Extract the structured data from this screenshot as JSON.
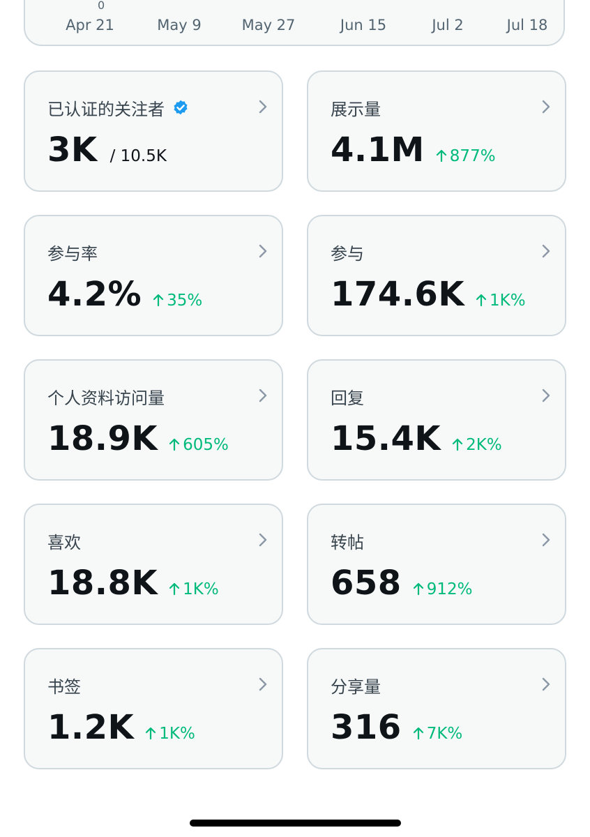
{
  "chart": {
    "y_zero_label": "0",
    "x_labels": [
      "Apr 21",
      "May 9",
      "May 27",
      "Jun 15",
      "Jul 2",
      "Jul 18"
    ]
  },
  "cards": [
    {
      "label": "已认证的关注者",
      "value": "3K",
      "sub": "/ 10.5K",
      "delta": "",
      "verified": true
    },
    {
      "label": "展示量",
      "value": "4.1M",
      "sub": "",
      "delta": "877%"
    },
    {
      "label": "参与率",
      "value": "4.2%",
      "sub": "",
      "delta": "35%"
    },
    {
      "label": "参与",
      "value": "174.6K",
      "sub": "",
      "delta": "1K%"
    },
    {
      "label": "个人资料访问量",
      "value": "18.9K",
      "sub": "",
      "delta": "605%"
    },
    {
      "label": "回复",
      "value": "15.4K",
      "sub": "",
      "delta": "2K%"
    },
    {
      "label": "喜欢",
      "value": "18.8K",
      "sub": "",
      "delta": "1K%"
    },
    {
      "label": "转帖",
      "value": "658",
      "sub": "",
      "delta": "912%"
    },
    {
      "label": "书签",
      "value": "1.2K",
      "sub": "",
      "delta": "1K%"
    },
    {
      "label": "分享量",
      "value": "316",
      "sub": "",
      "delta": "7K%"
    }
  ],
  "colors": {
    "accent_green": "#00ba7c",
    "verified_blue": "#1d9bf0",
    "card_border": "#cfd9de",
    "card_bg": "#f7f9f9"
  },
  "icons": {
    "verified": "verified-badge-icon",
    "chevron": "chevron-right-icon",
    "arrow": "arrow-up-icon"
  }
}
